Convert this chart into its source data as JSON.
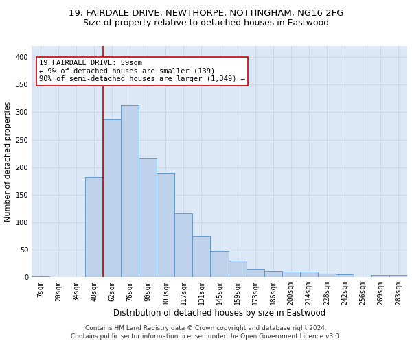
{
  "title": "19, FAIRDALE DRIVE, NEWTHORPE, NOTTINGHAM, NG16 2FG",
  "subtitle": "Size of property relative to detached houses in Eastwood",
  "xlabel": "Distribution of detached houses by size in Eastwood",
  "ylabel": "Number of detached properties",
  "categories": [
    "7sqm",
    "20sqm",
    "34sqm",
    "48sqm",
    "62sqm",
    "76sqm",
    "90sqm",
    "103sqm",
    "117sqm",
    "131sqm",
    "145sqm",
    "159sqm",
    "173sqm",
    "186sqm",
    "200sqm",
    "214sqm",
    "228sqm",
    "242sqm",
    "256sqm",
    "269sqm",
    "283sqm"
  ],
  "values": [
    2,
    0,
    0,
    182,
    287,
    313,
    216,
    190,
    116,
    75,
    48,
    30,
    16,
    12,
    10,
    10,
    7,
    5,
    0,
    4,
    4
  ],
  "bar_color": "#bed3eb",
  "bar_edge_color": "#6699cc",
  "vline_x_index": 4,
  "vline_color": "#cc0000",
  "annotation_text": "19 FAIRDALE DRIVE: 59sqm\n← 9% of detached houses are smaller (139)\n90% of semi-detached houses are larger (1,349) →",
  "annotation_box_color": "#ffffff",
  "annotation_box_edge": "#cc0000",
  "ylim": [
    0,
    420
  ],
  "yticks": [
    0,
    50,
    100,
    150,
    200,
    250,
    300,
    350,
    400
  ],
  "grid_color": "#c8d8ea",
  "background_color": "#dce8f5",
  "footer_line1": "Contains HM Land Registry data © Crown copyright and database right 2024.",
  "footer_line2": "Contains public sector information licensed under the Open Government Licence v3.0.",
  "title_fontsize": 9.5,
  "subtitle_fontsize": 9,
  "xlabel_fontsize": 8.5,
  "ylabel_fontsize": 8,
  "tick_fontsize": 7,
  "annotation_fontsize": 7.5,
  "footer_fontsize": 6.5
}
